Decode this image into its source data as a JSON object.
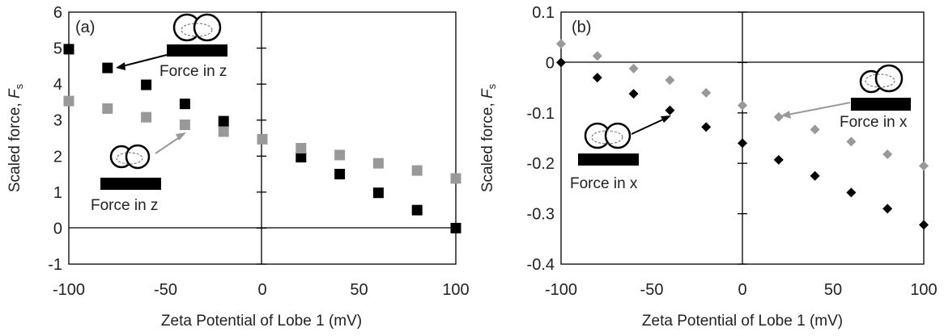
{
  "chart_data": [
    {
      "panel_label": "(a)",
      "type": "scatter",
      "xlabel": "Zeta Potential of Lobe 1 (mV)",
      "ylabel": "Scaled force, ",
      "ylabel_symbol": "F",
      "ylabel_sub": "s",
      "xlim": [
        -100,
        100
      ],
      "ylim": [
        -1,
        6
      ],
      "xticks": [
        "-100",
        "-50",
        "0",
        "50",
        "100"
      ],
      "yticks": [
        "-1",
        "0",
        "1",
        "2",
        "3",
        "4",
        "5",
        "6"
      ],
      "marker": "square",
      "grid": false,
      "series": [
        {
          "color": "#000000",
          "x": [
            -100,
            -80,
            -60,
            -40,
            -20,
            20,
            40,
            60,
            80,
            100
          ],
          "y": [
            4.97,
            4.45,
            3.98,
            3.45,
            2.97,
            1.97,
            1.5,
            0.98,
            0.5,
            0.0
          ]
        },
        {
          "color": "#999999",
          "x": [
            -100,
            -80,
            -60,
            -40,
            -20,
            0,
            20,
            40,
            60,
            80,
            100
          ],
          "y": [
            3.53,
            3.32,
            3.08,
            2.87,
            2.68,
            2.47,
            2.22,
            2.03,
            1.8,
            1.6,
            1.38
          ]
        }
      ],
      "annotations": [
        "Force in z",
        "Force in z"
      ]
    },
    {
      "panel_label": "(b)",
      "type": "scatter",
      "xlabel": "Zeta Potential of Lobe 1 (mV)",
      "ylabel": "Scaled force, ",
      "ylabel_symbol": "F",
      "ylabel_sub": "s",
      "xlim": [
        -100,
        100
      ],
      "ylim": [
        -0.4,
        0.1
      ],
      "xticks": [
        "-100",
        "-50",
        "0",
        "50",
        "100"
      ],
      "yticks": [
        "-0.4",
        "-0.3",
        "-0.2",
        "-0.1",
        "0",
        "0.1"
      ],
      "marker": "diamond",
      "grid": false,
      "series": [
        {
          "color": "#000000",
          "x": [
            -100,
            -80,
            -60,
            -40,
            -20,
            0,
            20,
            40,
            60,
            80,
            100
          ],
          "y": [
            0.0,
            -0.03,
            -0.062,
            -0.095,
            -0.128,
            -0.16,
            -0.193,
            -0.225,
            -0.258,
            -0.29,
            -0.322
          ]
        },
        {
          "color": "#999999",
          "x": [
            -100,
            -80,
            -60,
            -40,
            -20,
            0,
            20,
            40,
            60,
            80,
            100
          ],
          "y": [
            0.037,
            0.013,
            -0.012,
            -0.035,
            -0.06,
            -0.085,
            -0.108,
            -0.133,
            -0.157,
            -0.182,
            -0.205
          ]
        }
      ],
      "annotations": [
        "Force in x",
        "Force in x"
      ]
    }
  ]
}
